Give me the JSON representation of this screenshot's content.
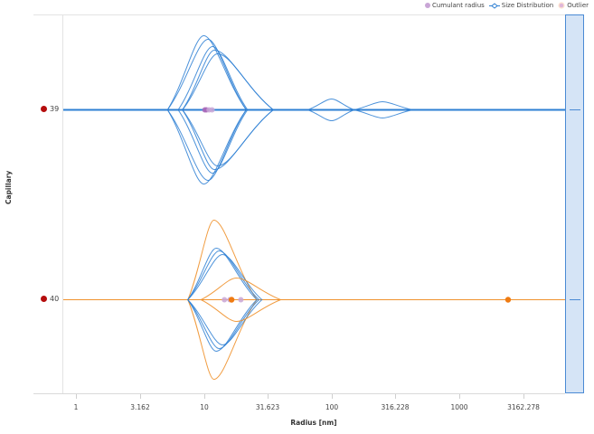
{
  "legend": {
    "items": [
      {
        "label": "Cumulant radius",
        "icon": "dot-icon",
        "color": "#c9a6d6"
      },
      {
        "label": "Size Distribution",
        "icon": "diamond-outline-icon",
        "color": "#2d7fd3"
      },
      {
        "label": "Outlier",
        "icon": "ring-dot-icon",
        "color": "#f5a35b"
      }
    ]
  },
  "colors": {
    "blue": "#2d7fd3",
    "orange": "#f0922e",
    "orange_dot": "#ef7b12",
    "cumulant": "#c9a6d6",
    "cumulant_dark": "#a967b8",
    "marker_red": "#b50d0d",
    "axis": "#d9d9d9"
  },
  "chart_data": {
    "type": "violin-like size distribution (log x)",
    "title": "",
    "xlabel": "Radius [nm]",
    "ylabel": "Capillary",
    "xscale": "log",
    "xlim": [
      0.7,
      6000
    ],
    "x_ticks": [
      1,
      3.162,
      10,
      31.623,
      100,
      316.228,
      1000,
      3162.278
    ],
    "x_tick_labels": [
      "1",
      "3.162",
      "10",
      "31.623",
      "100",
      "316.228",
      "1000",
      "3162.278"
    ],
    "categories": [
      "39",
      "40"
    ],
    "grid": false,
    "legend_position": "top-right",
    "series": [
      {
        "capillary": "39",
        "line_color": "#2d7fd3",
        "distributions": [
          {
            "color": "blue",
            "start": 5.2,
            "peak": 10.0,
            "end": 21.5,
            "half_height": 82
          },
          {
            "color": "blue",
            "start": 5.2,
            "peak": 10.8,
            "end": 21.5,
            "half_height": 78
          },
          {
            "color": "blue",
            "start": 6.3,
            "peak": 11.7,
            "end": 22.0,
            "half_height": 70
          },
          {
            "color": "blue",
            "start": 6.8,
            "peak": 12.1,
            "end": 35.0,
            "half_height": 66
          },
          {
            "color": "blue",
            "start": 6.8,
            "peak": 12.8,
            "end": 35.0,
            "half_height": 62
          },
          {
            "color": "blue",
            "start": 65.0,
            "peak": 100.0,
            "end": 150.0,
            "half_height": 12
          },
          {
            "color": "blue",
            "start": 150.0,
            "peak": 250.0,
            "end": 430.0,
            "half_height": 9
          }
        ],
        "cumulant_radius": [
          10.2,
          10.5,
          11.0,
          11.6
        ],
        "outliers": []
      },
      {
        "capillary": "40",
        "line_color": "#f0922e",
        "distributions": [
          {
            "color": "orange",
            "start": 7.5,
            "peak": 12.0,
            "end": 26.0,
            "half_height": 88
          },
          {
            "color": "blue",
            "start": 7.5,
            "peak": 12.5,
            "end": 26.0,
            "half_height": 57
          },
          {
            "color": "blue",
            "start": 7.5,
            "peak": 13.2,
            "end": 27.0,
            "half_height": 54
          },
          {
            "color": "blue",
            "start": 7.5,
            "peak": 14.0,
            "end": 28.5,
            "half_height": 50
          },
          {
            "color": "orange",
            "start": 9.5,
            "peak": 18.0,
            "end": 40.0,
            "half_height": 24
          }
        ],
        "cumulant_radius": [
          14.5,
          16.0,
          19.5
        ],
        "outliers": [
          16.5,
          2400.0
        ]
      }
    ]
  },
  "axis": {
    "xlabel": "Radius [nm]",
    "ylabel": "Capillary",
    "ticks": [
      {
        "label": "1",
        "x": 84
      },
      {
        "label": "3.162",
        "x": 155
      },
      {
        "label": "10",
        "x": 226
      },
      {
        "label": "31.623",
        "x": 296
      },
      {
        "label": "100",
        "x": 367
      },
      {
        "label": "316.228",
        "x": 437
      },
      {
        "label": "1000",
        "x": 508
      },
      {
        "label": "3162.278",
        "x": 579
      }
    ]
  },
  "rows": [
    {
      "label": "39",
      "y": 121
    },
    {
      "label": "40",
      "y": 331
    }
  ]
}
